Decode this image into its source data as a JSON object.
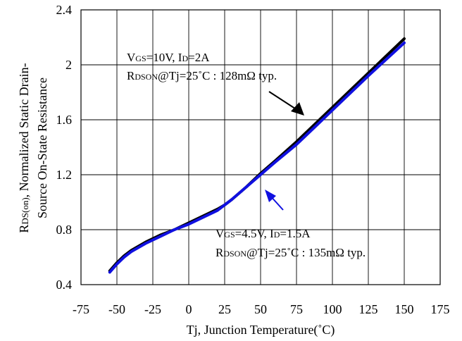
{
  "chart_data": {
    "type": "line",
    "title": "",
    "xlabel": "Tj, Junction Temperature(˚C)",
    "ylabel": {
      "line1_main": "R",
      "line1_sub": "DS(on)",
      "line1_rest": ", Normalized Static Drain-",
      "line2": "Source On-State Resistance"
    },
    "xlim": [
      -75,
      175
    ],
    "ylim": [
      0.4,
      2.4
    ],
    "xticks": [
      -75,
      -50,
      -25,
      0,
      25,
      50,
      75,
      100,
      125,
      150,
      175
    ],
    "yticks": [
      0.4,
      0.8,
      1.2,
      1.6,
      2.0,
      2.4
    ],
    "xtick_labels": [
      "-75",
      "-50",
      "-25",
      "0",
      "25",
      "50",
      "75",
      "100",
      "125",
      "150",
      "175"
    ],
    "ytick_labels": [
      "0.4",
      "0.8",
      "1.2",
      "1.6",
      "2",
      "2.4"
    ],
    "grid": true,
    "series": [
      {
        "color": "#000000",
        "x": [
          -55,
          -50,
          -45,
          -40,
          -30,
          -20,
          -10,
          0,
          10,
          20,
          25,
          30,
          40,
          50,
          60,
          75,
          90,
          100,
          125,
          150
        ],
        "y": [
          0.5,
          0.56,
          0.61,
          0.65,
          0.71,
          0.76,
          0.8,
          0.85,
          0.9,
          0.95,
          0.98,
          1.02,
          1.11,
          1.21,
          1.3,
          1.44,
          1.59,
          1.69,
          1.94,
          2.19
        ]
      },
      {
        "color": "#1010e0",
        "x": [
          -55,
          -50,
          -45,
          -40,
          -30,
          -20,
          -10,
          0,
          10,
          20,
          25,
          30,
          40,
          50,
          60,
          75,
          90,
          100,
          125,
          150
        ],
        "y": [
          0.49,
          0.55,
          0.6,
          0.64,
          0.7,
          0.75,
          0.8,
          0.84,
          0.89,
          0.94,
          0.98,
          1.02,
          1.11,
          1.2,
          1.29,
          1.42,
          1.57,
          1.67,
          1.92,
          2.16
        ]
      }
    ],
    "annotations": [
      {
        "id": "black",
        "line1": {
          "a": "V",
          "a_sub": "GS",
          "b": "=10V, I",
          "b_sub": "D",
          "c": "=2A"
        },
        "line2": {
          "a": "R",
          "a_sub": "DSON",
          "b": "@Tj=25˚C : 128mΩ typ."
        },
        "arrow_color": "#000000"
      },
      {
        "id": "blue",
        "line1": {
          "a": "V",
          "a_sub": "GS",
          "b": "=4.5V, I",
          "b_sub": "D",
          "c": "=1.5A"
        },
        "line2": {
          "a": "R",
          "a_sub": "DSON",
          "b": "@Tj=25˚C : 135mΩ  typ."
        },
        "arrow_color": "#1010e0"
      }
    ]
  }
}
